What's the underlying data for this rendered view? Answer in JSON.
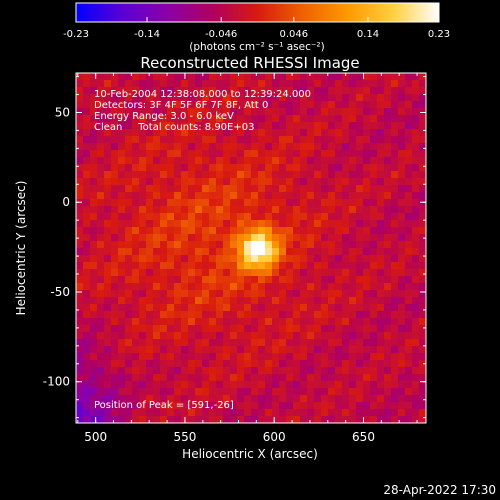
{
  "colorbar": {
    "tick_labels": [
      "-0.23",
      "-0.14",
      "-0.046",
      "0.046",
      "0.14",
      "0.23"
    ],
    "tick_values": [
      -0.23,
      -0.14,
      -0.046,
      0.046,
      0.14,
      0.23
    ],
    "range": [
      -0.23,
      0.23
    ],
    "units_label": "(photons cm⁻² s⁻¹ asec⁻²)",
    "colormap": [
      "#0000ff",
      "#5a00d6",
      "#8a00a8",
      "#b00060",
      "#d81a10",
      "#f06000",
      "#ff9a00",
      "#ffd040",
      "#ffffff"
    ]
  },
  "chart_data": {
    "type": "heatmap",
    "title": "Reconstructed RHESSI Image",
    "xlabel": "Heliocentric X (arcsec)",
    "ylabel": "Heliocentric Y (arcsec)",
    "xlim": [
      489,
      685
    ],
    "ylim": [
      -123,
      72
    ],
    "xticks": [
      500,
      550,
      600,
      650
    ],
    "yticks": [
      50,
      0,
      -50,
      -100
    ],
    "xtick_labels": [
      "500",
      "550",
      "600",
      "650"
    ],
    "ytick_labels": [
      "50",
      "0",
      "-50",
      "-100"
    ],
    "peak": {
      "x": 591,
      "y": -26,
      "value": 0.23
    },
    "annotations": [
      "10-Feb-2004 12:38:08.000 to 12:39:24.000",
      "Detectors: 3F 4F 5F 6F 7F 8F, Att 0",
      "Energy Range: 3.0 - 6.0 keV",
      "Clean     Total counts: 8.90E+03"
    ],
    "peak_label": "Position of Peak = [591,-26]"
  },
  "footer": {
    "timestamp": "28-Apr-2022 17:30"
  }
}
